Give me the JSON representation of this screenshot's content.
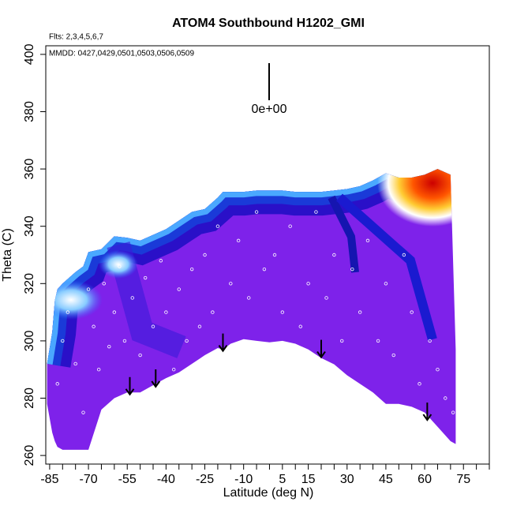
{
  "chart_data": {
    "type": "contour",
    "title": "ATOM4 Southbound H1202_GMI",
    "flights_note": "Flts: 2,3,4,5,6,7",
    "dates_note": "MMDD: 0427,0429,0501,0503,0506,0509",
    "scale_label": "0e+00",
    "xlabel": "Latitude (deg N)",
    "ylabel": "Theta (C)",
    "xlim": [
      -86.5,
      85
    ],
    "ylim": [
      257,
      403
    ],
    "xticks": [
      -85,
      -70,
      -55,
      -40,
      -25,
      -10,
      5,
      15,
      30,
      45,
      60,
      75
    ],
    "xminorticks": [
      -85,
      -80,
      -75,
      -70,
      -65,
      -60,
      -55,
      -50,
      -45,
      -40,
      -35,
      -30,
      -25,
      -20,
      -15,
      -10,
      -5,
      0,
      5,
      10,
      15,
      20,
      25,
      30,
      35,
      40,
      45,
      50,
      55,
      60,
      65,
      70,
      75,
      80,
      85
    ],
    "yticks": [
      260,
      280,
      300,
      320,
      340,
      360,
      380,
      400
    ],
    "field": {
      "x": [
        -86,
        -84,
        -83,
        -82,
        -80,
        -75,
        -72,
        -70,
        -65,
        -60,
        -55,
        -50,
        -45,
        -40,
        -35,
        -30,
        -25,
        -20,
        -18,
        -15,
        -10,
        -5,
        0,
        5,
        10,
        15,
        20,
        25,
        30,
        35,
        40,
        45,
        50,
        55,
        60,
        65,
        70,
        72
      ],
      "y_top": [
        292,
        303,
        314,
        318,
        320,
        324,
        326,
        331,
        332,
        336.5,
        336,
        335,
        337,
        339,
        342,
        345,
        346,
        350,
        352,
        352,
        352,
        352.5,
        352.5,
        352.5,
        352,
        352,
        352,
        352.5,
        353,
        354,
        356,
        358.5,
        357,
        357,
        358,
        360,
        358,
        297
      ],
      "y_bottom": [
        278,
        268,
        265,
        263,
        262,
        262,
        262,
        262,
        276,
        280,
        282,
        282,
        284.5,
        287,
        289,
        292,
        295,
        297.5,
        297,
        299,
        300.6,
        300,
        299.5,
        300,
        299,
        297,
        294,
        291.8,
        288,
        285,
        282,
        278,
        278,
        277,
        275,
        270,
        265,
        264
      ]
    },
    "points": {
      "x": [
        -82,
        -80,
        -78,
        -75,
        -72,
        -70,
        -68,
        -66,
        -64,
        -62,
        -60,
        -58,
        -56,
        -53,
        -50,
        -48,
        -45,
        -42,
        -40,
        -37,
        -35,
        -32,
        -30,
        -27,
        -25,
        -22,
        -20,
        -15,
        -12,
        -8,
        -5,
        -2,
        2,
        5,
        8,
        12,
        15,
        18,
        22,
        25,
        28,
        32,
        35,
        38,
        42,
        45,
        48,
        52,
        55,
        58,
        62,
        65,
        68,
        71
      ],
      "y": [
        285,
        300,
        310,
        292,
        275,
        318,
        305,
        290,
        320,
        298,
        310,
        326,
        300,
        315,
        295,
        322,
        305,
        328,
        310,
        290,
        318,
        300,
        325,
        305,
        330,
        310,
        340,
        320,
        335,
        315,
        345,
        325,
        330,
        310,
        340,
        305,
        320,
        345,
        315,
        330,
        300,
        325,
        310,
        335,
        300,
        320,
        295,
        330,
        310,
        285,
        300,
        290,
        280,
        275
      ]
    },
    "arrows": {
      "x": [
        -54,
        -44,
        -18,
        20,
        61
      ],
      "y": [
        281.3,
        284,
        296.5,
        294.3,
        272.4
      ]
    },
    "colors": {
      "field": "#7e22ea",
      "points": "#ffffff",
      "arrows": "#000000"
    }
  }
}
